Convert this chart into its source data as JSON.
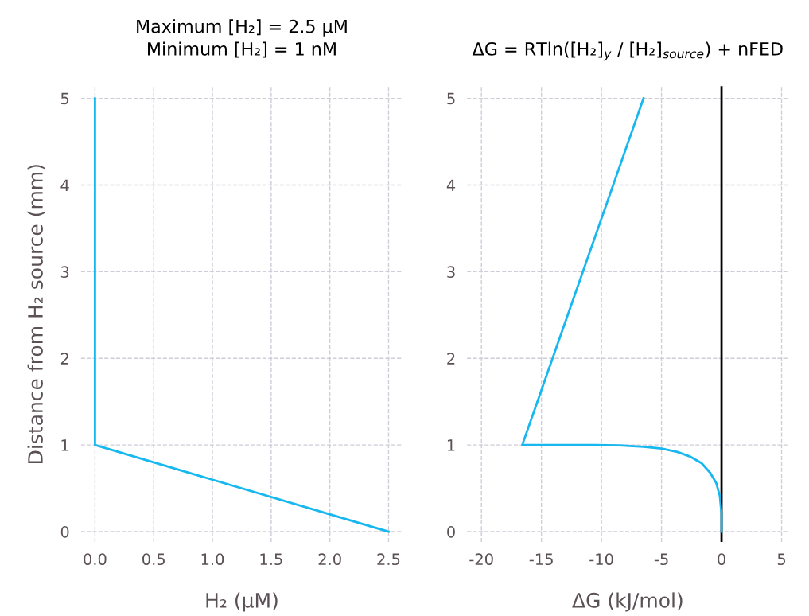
{
  "chart_data": [
    {
      "type": "line",
      "title": "Maximum [H₂] = 2.5 µM\nMinimum [H₂] = 1 nM",
      "xlabel": "H₂ (µM)",
      "ylabel": "Distance from H₂ source (mm)",
      "series": [
        {
          "color": "#17b7ef",
          "x": [
            2.5,
            0,
            0
          ],
          "values": [
            0,
            1,
            5
          ]
        }
      ],
      "xlim": [
        -0.12,
        2.62
      ],
      "xticks": [
        {
          "value": 0,
          "label": "0.0"
        },
        0.5,
        {
          "value": 1,
          "label": "1.0"
        },
        1.5,
        {
          "value": 2,
          "label": "2.0"
        },
        2.5
      ],
      "ylim": [
        -0.12,
        5.14
      ],
      "yticks": [
        0,
        1,
        2,
        3,
        4,
        5
      ],
      "grid": true,
      "line_style": "solid",
      "marker": "none"
    },
    {
      "type": "line",
      "title": "ΔG = RTln([H₂]$_{y}$ / [H₂]$_{source}$) + nFED",
      "xlabel": "ΔG (kJ/mol)",
      "series": [
        {
          "color": "#17b7ef",
          "x": [
            0,
            0,
            -0.14,
            -0.44,
            -0.95,
            -1.66,
            -2.67,
            -3.68,
            -4.99,
            -6.5,
            -8.5,
            -10.5,
            -16.6,
            -6.5
          ],
          "values": [
            0,
            0.2,
            0.41,
            0.56,
            0.68,
            0.79,
            0.87,
            0.92,
            0.96,
            0.98,
            0.995,
            1,
            1,
            5
          ]
        }
      ],
      "xlim": [
        -21.2,
        5.6
      ],
      "xticks": [
        -20,
        -15,
        -10,
        -5,
        0,
        5
      ],
      "ylim": [
        -0.12,
        5.14
      ],
      "yticks": [
        0,
        1,
        2,
        3,
        4,
        5
      ],
      "grid": true,
      "line_style": "solid",
      "marker": "none",
      "ref_lines": [
        {
          "axis": "x",
          "value": 0,
          "color": "#000000",
          "line_style": "solid"
        }
      ]
    }
  ]
}
